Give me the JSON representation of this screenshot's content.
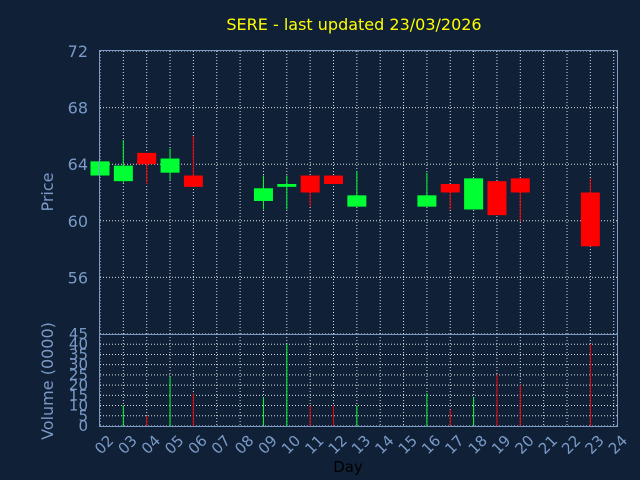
{
  "chart_data": {
    "type": "candlestick",
    "title": "SERE - last updated 23/03/2026",
    "xlabel": "Day",
    "price_panel": {
      "ylabel": "Price",
      "ylim": [
        52,
        72
      ],
      "yticks": [
        72,
        68,
        64,
        60,
        56
      ],
      "grid": true
    },
    "volume_panel": {
      "ylabel": "Volume (0000)",
      "ylim": [
        0,
        45
      ],
      "yticks": [
        45,
        40,
        35,
        30,
        25,
        20,
        15,
        10,
        5,
        0
      ],
      "grid": true
    },
    "x_ticks": [
      "02",
      "03",
      "04",
      "05",
      "06",
      "07",
      "08",
      "09",
      "10",
      "11",
      "12",
      "13",
      "14",
      "15",
      "16",
      "17",
      "18",
      "19",
      "20",
      "21",
      "22",
      "23",
      "24"
    ],
    "colors": {
      "up": "#00ff33",
      "down": "#ff0000"
    },
    "candles": [
      {
        "day": "02",
        "open": 63.2,
        "close": 64.2,
        "high": 64.2,
        "low": 63.2,
        "volume": 0
      },
      {
        "day": "03",
        "open": 62.8,
        "close": 63.9,
        "high": 65.7,
        "low": 62.7,
        "volume": 10
      },
      {
        "day": "04",
        "open": 64.8,
        "close": 64.0,
        "high": 64.8,
        "low": 62.6,
        "volume": 5
      },
      {
        "day": "05",
        "open": 63.4,
        "close": 64.4,
        "high": 65.1,
        "low": 62.9,
        "volume": 24
      },
      {
        "day": "06",
        "open": 63.2,
        "close": 62.4,
        "high": 66.0,
        "low": 62.4,
        "volume": 16
      },
      {
        "day": "09",
        "open": 61.4,
        "close": 62.3,
        "high": 63.2,
        "low": 60.8,
        "volume": 14
      },
      {
        "day": "10",
        "open": 62.4,
        "close": 62.6,
        "high": 63.2,
        "low": 60.8,
        "volume": 40
      },
      {
        "day": "11",
        "open": 63.2,
        "close": 62.0,
        "high": 63.2,
        "low": 61.0,
        "volume": 10
      },
      {
        "day": "12",
        "open": 63.2,
        "close": 62.6,
        "high": 63.2,
        "low": 62.6,
        "volume": 10
      },
      {
        "day": "13",
        "open": 61.0,
        "close": 61.8,
        "high": 63.5,
        "low": 61.0,
        "volume": 10
      },
      {
        "day": "16",
        "open": 61.0,
        "close": 61.8,
        "high": 63.4,
        "low": 61.0,
        "volume": 16
      },
      {
        "day": "17",
        "open": 62.6,
        "close": 62.0,
        "high": 62.6,
        "low": 60.8,
        "volume": 8
      },
      {
        "day": "18",
        "open": 60.8,
        "close": 63.0,
        "high": 63.0,
        "low": 60.8,
        "volume": 14
      },
      {
        "day": "19",
        "open": 62.8,
        "close": 60.4,
        "high": 62.8,
        "low": 60.4,
        "volume": 25
      },
      {
        "day": "20",
        "open": 63.0,
        "close": 62.0,
        "high": 63.0,
        "low": 60.0,
        "volume": 20
      },
      {
        "day": "23",
        "open": 62.0,
        "close": 58.2,
        "high": 63.0,
        "low": 58.2,
        "volume": 40
      }
    ]
  }
}
